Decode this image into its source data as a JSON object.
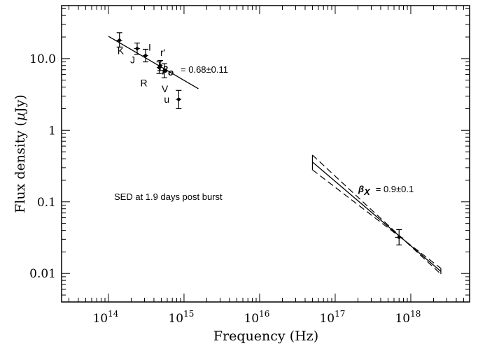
{
  "chart_data": {
    "type": "scatter",
    "xlabel": "Frequency (Hz)",
    "ylabel_text": "Flux density (",
    "ylabel_unit_mu": "µ",
    "ylabel_unit_rest": "Jy)",
    "x_scale": "log",
    "y_scale": "log",
    "xlim": [
      24000000000000.0,
      6e+18
    ],
    "ylim": [
      0.004,
      55
    ],
    "x_ticks": [
      {
        "value": 100000000000000.0,
        "base": "10",
        "exp": "14"
      },
      {
        "value": 1000000000000000.0,
        "base": "10",
        "exp": "15"
      },
      {
        "value": 1e+16,
        "base": "10",
        "exp": "16"
      },
      {
        "value": 1e+17,
        "base": "10",
        "exp": "17"
      },
      {
        "value": 1e+18,
        "base": "10",
        "exp": "18"
      }
    ],
    "y_ticks": [
      {
        "value": 0.01,
        "label": "0.01"
      },
      {
        "value": 0.1,
        "label": "0.1"
      },
      {
        "value": 1,
        "label": "1"
      },
      {
        "value": 10,
        "label": "10.0"
      }
    ],
    "annotation": "SED at 1.9 days post burst",
    "points": [
      {
        "band": "K",
        "x": 140000000000000.0,
        "y": 18.0,
        "ylo": 14.5,
        "yhi": 23.0,
        "xlo": 128000000000000.0,
        "xhi": 152000000000000.0
      },
      {
        "band": "J",
        "x": 240000000000000.0,
        "y": 13.8,
        "ylo": 11.5,
        "yhi": 16.5,
        "xlo": 218000000000000.0,
        "xhi": 262000000000000.0
      },
      {
        "band": "I",
        "x": 310000000000000.0,
        "y": 11.0,
        "ylo": 9.0,
        "yhi": 13.5,
        "xlo": 285000000000000.0,
        "xhi": 335000000000000.0
      },
      {
        "band": "R",
        "x": 470000000000000.0,
        "y": 7.5,
        "ylo": 6.2,
        "yhi": 9.0,
        "xlo": 435000000000000.0,
        "xhi": 505000000000000.0
      },
      {
        "band": "r'",
        "x": 485000000000000.0,
        "y": 8.0,
        "ylo": 6.8,
        "yhi": 9.4,
        "xlo": 450000000000000.0,
        "xhi": 520000000000000.0
      },
      {
        "band": "V",
        "x": 550000000000000.0,
        "y": 6.8,
        "ylo": 5.4,
        "yhi": 8.5,
        "xlo": 510000000000000.0,
        "xhi": 590000000000000.0
      },
      {
        "band": "u",
        "x": 850000000000000.0,
        "y": 2.7,
        "ylo": 2.0,
        "yhi": 3.6,
        "xlo": 780000000000000.0,
        "xhi": 920000000000000.0
      },
      {
        "band": "",
        "x": 7e+17,
        "y": 0.032,
        "ylo": 0.025,
        "yhi": 0.041,
        "xlo": 6.2e+17,
        "xhi": 7.8e+17
      }
    ],
    "optical_fit": {
      "x0": 100000000000000.0,
      "y0": 20.5,
      "x1": 1550000000000000.0,
      "y1": 3.8
    },
    "xray_fit": {
      "x0": 5e+16,
      "x1": 2.5e+18,
      "center": [
        0.36,
        0.0107
      ],
      "upper": [
        0.45,
        0.0118
      ],
      "lower": [
        0.28,
        0.0098
      ]
    },
    "beta_o": {
      "symbol": "β",
      "sub": "o",
      "text": "= 0.68±0.11"
    },
    "beta_x": {
      "symbol": "β",
      "sub": "X",
      "text": "= 0.9±0.1"
    }
  }
}
